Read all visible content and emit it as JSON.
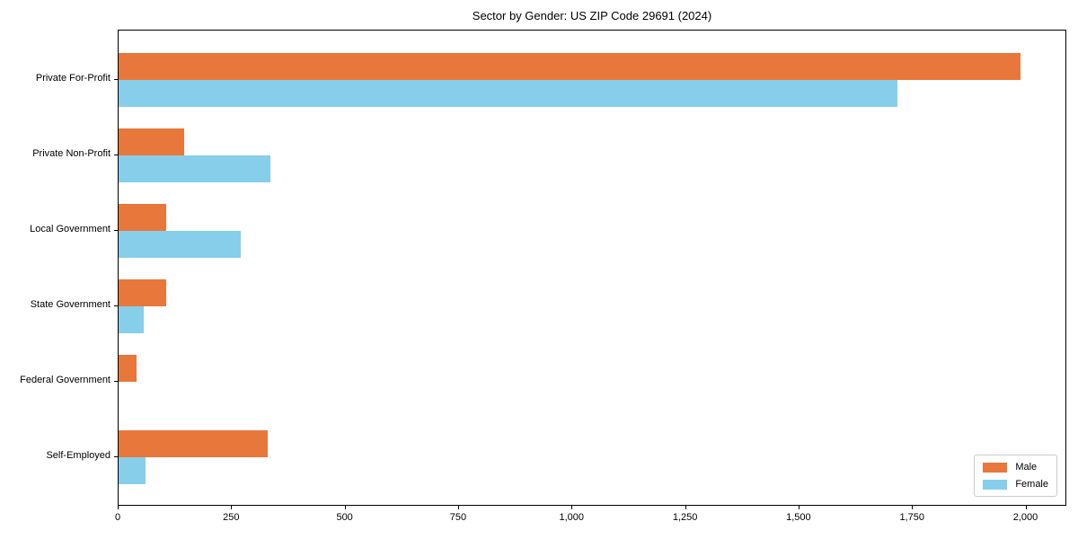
{
  "chart_data": {
    "type": "bar",
    "orientation": "horizontal",
    "title": "Sector by Gender: US ZIP Code 29691 (2024)",
    "categories": [
      "Private For-Profit",
      "Private Non-Profit",
      "Local Government",
      "State Government",
      "Federal Government",
      "Self-Employed"
    ],
    "series": [
      {
        "name": "Male",
        "color": "#e8773b",
        "values": [
          1990,
          145,
          105,
          105,
          40,
          330
        ]
      },
      {
        "name": "Female",
        "color": "#87ceeb",
        "values": [
          1720,
          335,
          270,
          55,
          0,
          60
        ]
      }
    ],
    "xlabel": "",
    "ylabel": "",
    "xlim": [
      0,
      2090
    ],
    "xticks": [
      0,
      250,
      500,
      750,
      1000,
      1250,
      1500,
      1750,
      2000
    ],
    "xtick_labels": [
      "0",
      "250",
      "500",
      "750",
      "1,000",
      "1,250",
      "1,500",
      "1,750",
      "2,000"
    ],
    "legend_position": "lower-right",
    "grid": false,
    "background_color": "#ffffff",
    "spine_color": "#000000"
  }
}
